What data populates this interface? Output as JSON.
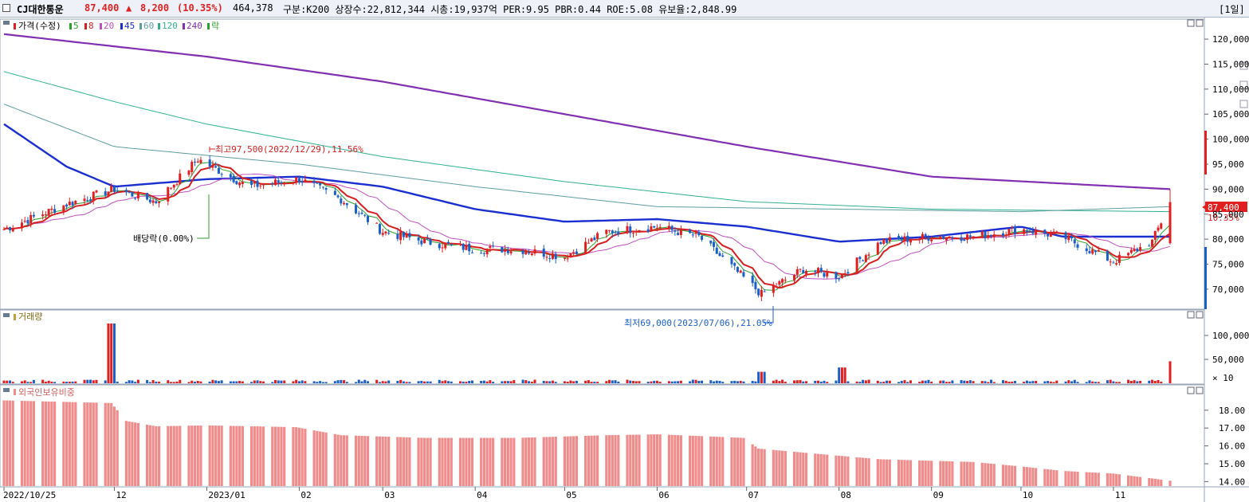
{
  "header": {
    "stock_name": "CJ대한통운",
    "price": "87,400",
    "change_arrow": "▲",
    "change": "8,200",
    "change_pct": "(10.35%)",
    "volume": "464,378",
    "info": "구분:K200 상장수:22,812,344 시총:19,937억 PER:9.95 PBR:0.44 ROE:5.08 유보율:2,848.99",
    "period": "[1일]"
  },
  "colors": {
    "up": "#e02020",
    "down": "#1a5fc8",
    "ma5": "#2da02d",
    "ma8": "#d42020",
    "ma20": "#c050c0",
    "ma45": "#1a2fd0",
    "ma60": "#5f9ea0",
    "ma120": "#30b090",
    "ma240": "#8030b0",
    "foreign": "#f08c8c"
  },
  "legend": {
    "price": "가격(수정)",
    "ma5": "5",
    "ma8": "8",
    "ma20": "20",
    "ma45": "45",
    "ma60": "60",
    "ma120": "120",
    "ma240": "240",
    "ex": "락"
  },
  "annotations": {
    "high": "최고97,500(2022/12/29),11.56%",
    "low": "최저69,000(2023/07/06),21.05%",
    "dividend": "배당락(0.00%)",
    "current_price": "87,400",
    "current_pct": "10.35%"
  },
  "volume_panel": {
    "title": "거래량",
    "multiplier": "× 10"
  },
  "foreign_panel": {
    "title": "외국인보유비중"
  },
  "chart_data": [
    {
      "type": "line",
      "title": "가격(수정)",
      "note": "daily candlestick with moving averages",
      "ylim": [
        66000,
        124000
      ],
      "yticks": [
        "120,000",
        "115,000",
        "110,000",
        "105,000",
        "100,000",
        "95,000",
        "90,000",
        "85,000",
        "80,000",
        "75,000",
        "70,000"
      ],
      "ytick_values": [
        120000,
        115000,
        110000,
        105000,
        100000,
        95000,
        90000,
        85000,
        80000,
        75000,
        70000
      ],
      "xticks": [
        "2022/10/25",
        "12",
        "2023/01",
        "02",
        "03",
        "04",
        "05",
        "06",
        "07",
        "08",
        "09",
        "10",
        "11"
      ],
      "high": 97500,
      "low": 69000,
      "last_close": 87400,
      "last_high": 90000,
      "series": [
        {
          "name": "가격(수정)",
          "x": [
            "2022/10/25",
            "2022/11/15",
            "2022/12/01",
            "2022/12/15",
            "2022/12/29",
            "2023/01/15",
            "2023/02/01",
            "2023/02/15",
            "2023/03/01",
            "2023/03/15",
            "2023/04/01",
            "2023/04/15",
            "2023/05/01",
            "2023/05/15",
            "2023/06/01",
            "2023/06/15",
            "2023/07/06",
            "2023/07/20",
            "2023/08/01",
            "2023/08/15",
            "2023/09/01",
            "2023/09/15",
            "2023/10/01",
            "2023/10/15",
            "2023/11/01",
            "2023/11/14",
            "2023/11/20"
          ],
          "values": [
            82000,
            87000,
            90000,
            87500,
            96000,
            90500,
            92000,
            88000,
            81500,
            79500,
            78000,
            78000,
            76500,
            81500,
            82500,
            80500,
            69000,
            74000,
            72500,
            79500,
            80500,
            80500,
            82000,
            80500,
            75500,
            79500,
            87400
          ]
        },
        {
          "name": "240",
          "x": [
            "2022/10/25",
            "2023/01/01",
            "2023/03/01",
            "2023/05/01",
            "2023/07/01",
            "2023/09/01",
            "2023/11/20"
          ],
          "values": [
            121000,
            116500,
            111500,
            105000,
            98500,
            92500,
            90000
          ]
        },
        {
          "name": "120",
          "x": [
            "2022/10/25",
            "2022/12/01",
            "2023/01/01",
            "2023/03/01",
            "2023/05/01",
            "2023/07/01",
            "2023/09/01",
            "2023/11/20"
          ],
          "values": [
            113500,
            107500,
            103000,
            96500,
            91500,
            87500,
            86000,
            85500
          ]
        },
        {
          "name": "60",
          "x": [
            "2022/10/25",
            "2022/12/01",
            "2023/02/01",
            "2023/04/01",
            "2023/06/01",
            "2023/08/01",
            "2023/10/01",
            "2023/11/20"
          ],
          "values": [
            107000,
            98500,
            95000,
            90500,
            86500,
            86000,
            85500,
            86500
          ]
        },
        {
          "name": "45",
          "x": [
            "2022/10/25",
            "2022/11/15",
            "2022/12/01",
            "2023/01/01",
            "2023/02/01",
            "2023/03/01",
            "2023/04/01",
            "2023/05/01",
            "2023/06/01",
            "2023/07/01",
            "2023/08/01",
            "2023/09/01",
            "2023/10/01",
            "2023/10/15",
            "2023/11/20"
          ],
          "values": [
            103000,
            94500,
            90500,
            92000,
            92500,
            90500,
            86000,
            83500,
            84000,
            82500,
            79500,
            80500,
            82500,
            80500,
            80500
          ]
        }
      ]
    },
    {
      "type": "bar",
      "title": "거래량",
      "ylim": [
        0,
        130000
      ],
      "yticks": [
        "100,000",
        "50,000"
      ],
      "ytick_values": [
        100000,
        50000
      ],
      "notable": [
        {
          "x": "2022/11/30",
          "value": 125000
        },
        {
          "x": "2023/07/06",
          "value": 24000
        },
        {
          "x": "2023/08/02",
          "value": 33000
        },
        {
          "x": "2023/11/20",
          "value": 46000
        }
      ]
    },
    {
      "type": "bar",
      "title": "외국인보유비중",
      "ylim": [
        13.75,
        18.75
      ],
      "yticks": [
        "18.00",
        "17.00",
        "16.00",
        "15.00",
        "14.00"
      ],
      "ytick_values": [
        18,
        17,
        16,
        15,
        14
      ],
      "x": [
        "2022/10/25",
        "2022/11/30",
        "2022/12/05",
        "2022/12/15",
        "2023/01/01",
        "2023/01/31",
        "2023/02/15",
        "2023/03/15",
        "2023/04/15",
        "2023/05/15",
        "2023/06/01",
        "2023/06/30",
        "2023/07/05",
        "2023/08/01",
        "2023/08/15",
        "2023/09/15",
        "2023/10/01",
        "2023/10/15",
        "2023/11/01",
        "2023/11/20"
      ],
      "values": [
        18.55,
        18.4,
        17.4,
        17.1,
        17.15,
        17.05,
        16.6,
        16.45,
        16.45,
        16.6,
        16.65,
        16.45,
        15.85,
        15.45,
        15.25,
        15.1,
        14.85,
        14.6,
        14.45,
        14.05
      ]
    }
  ]
}
